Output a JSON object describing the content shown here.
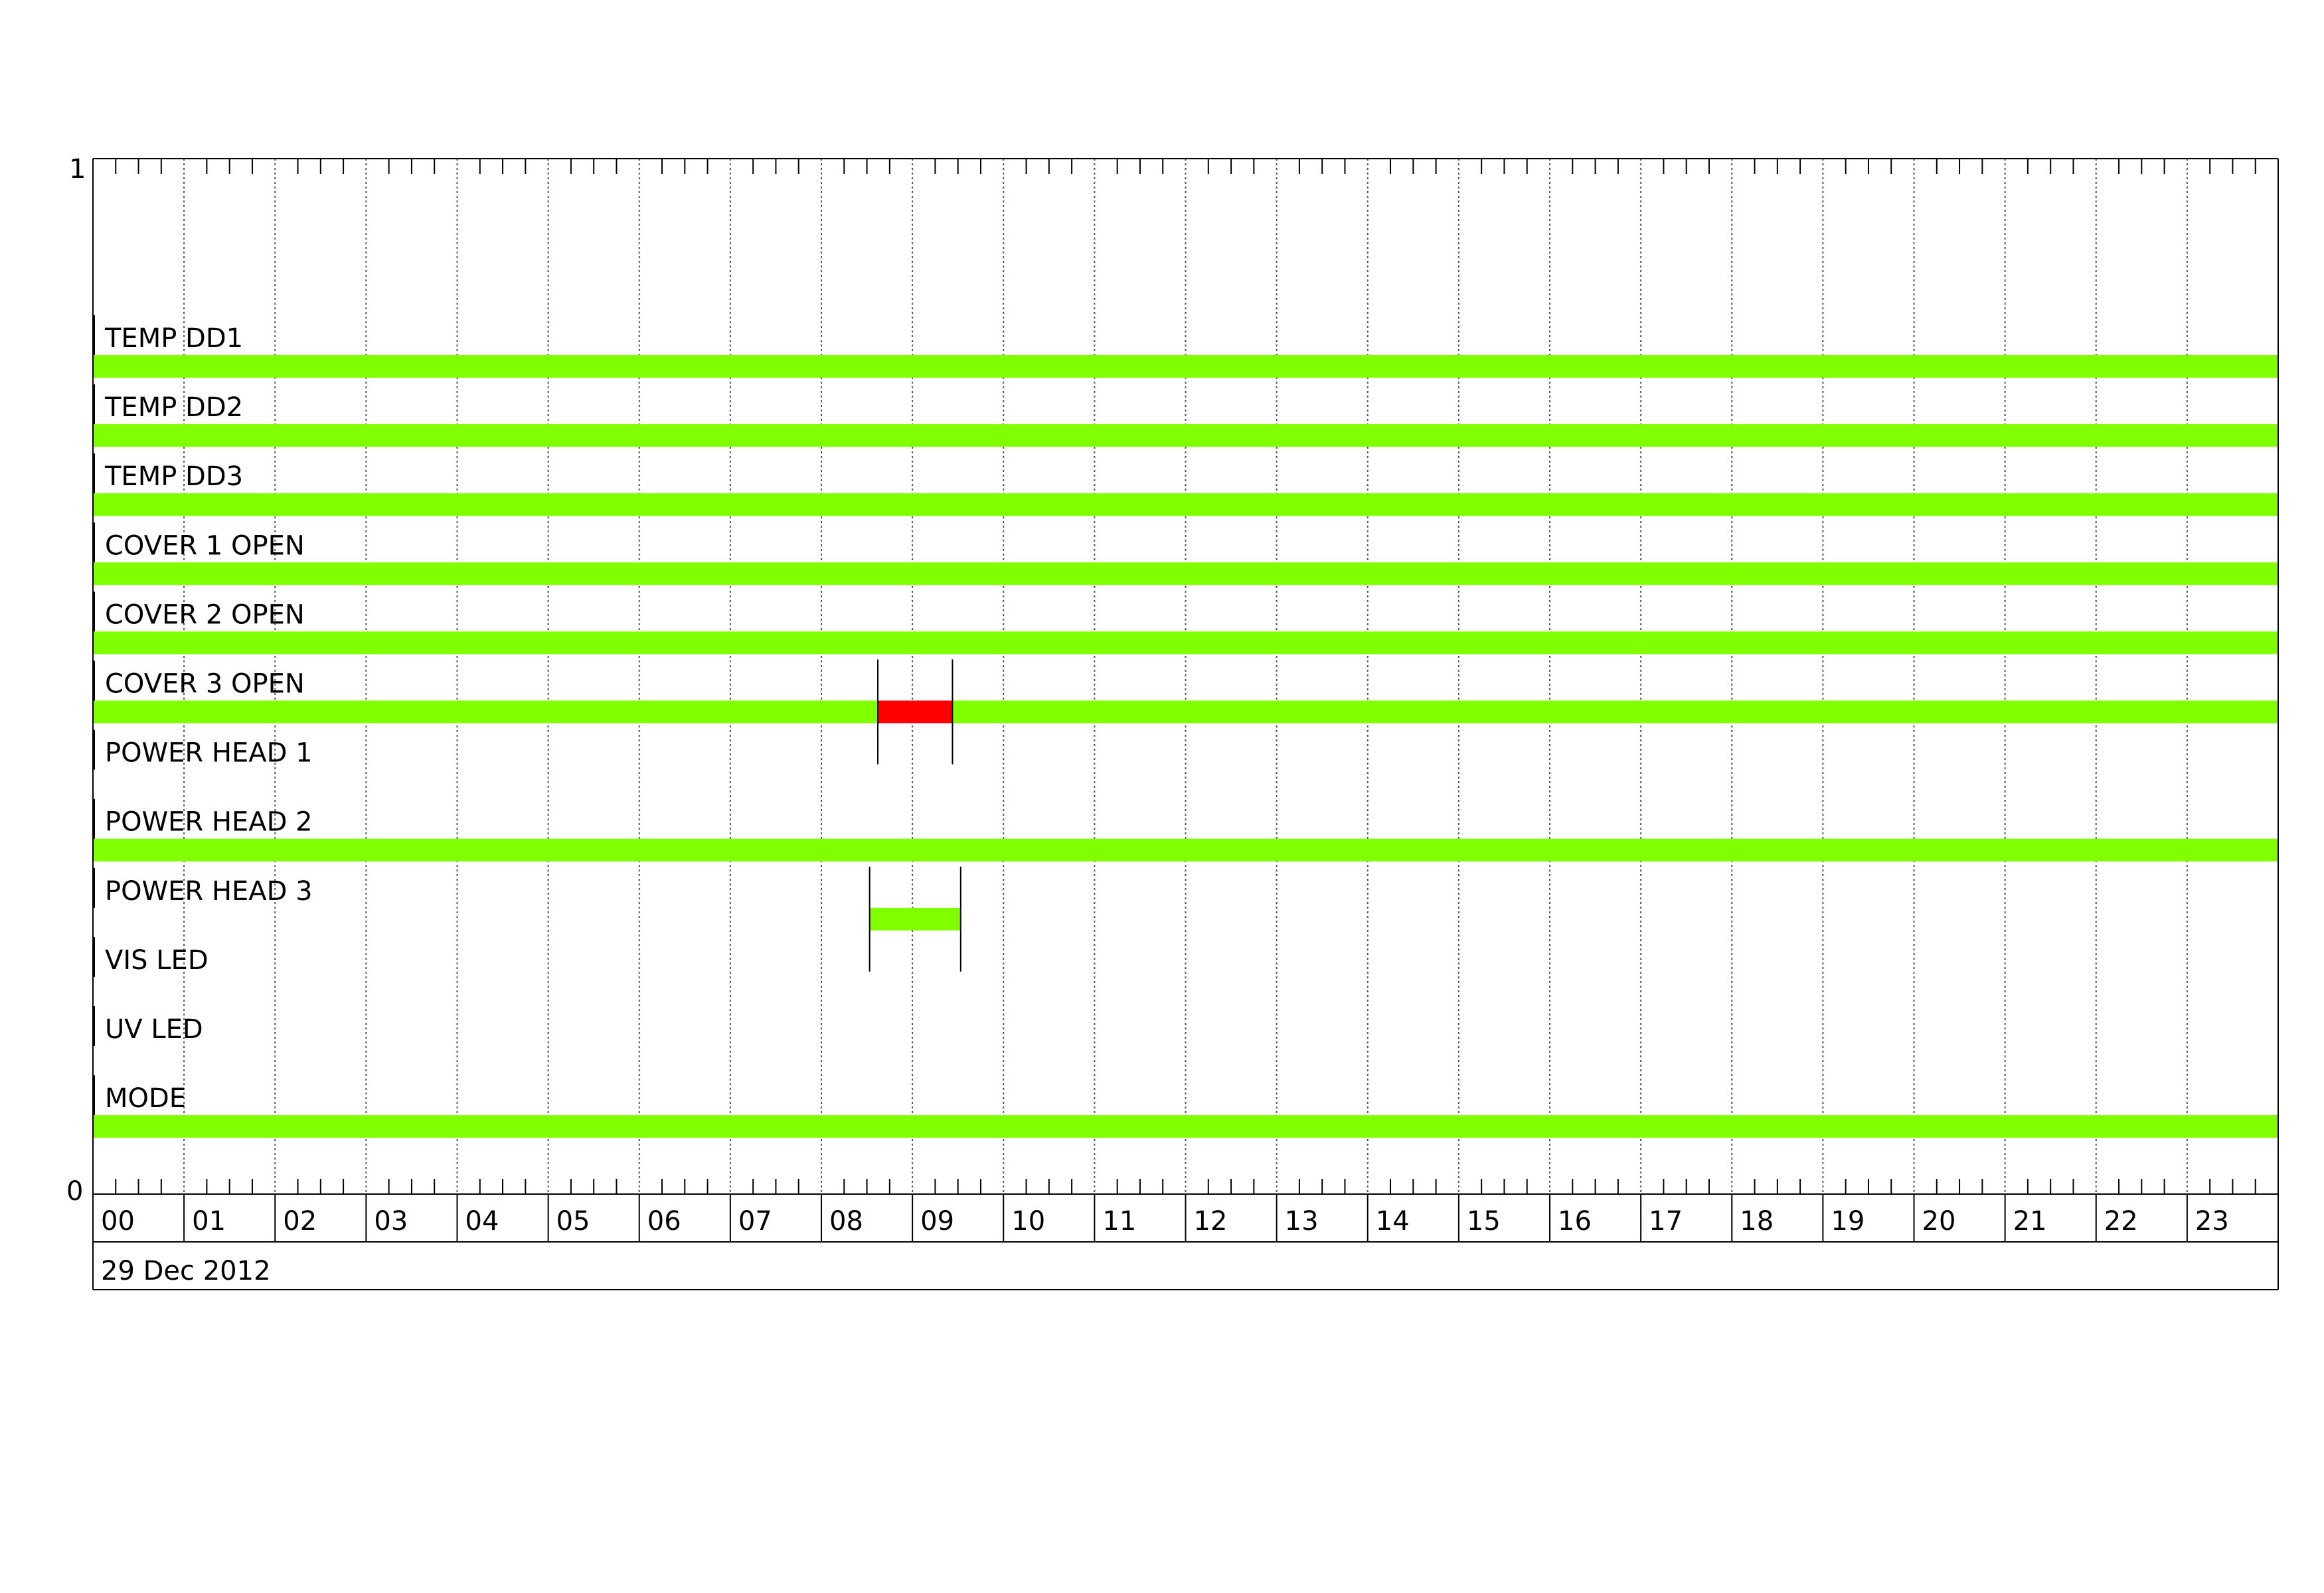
{
  "chart_data": {
    "type": "timeline",
    "date_label": "29 Dec 2012",
    "y_ticks": [
      "1",
      "0"
    ],
    "x_tick_labels": [
      "00",
      "01",
      "02",
      "03",
      "04",
      "05",
      "06",
      "07",
      "08",
      "09",
      "10",
      "11",
      "12",
      "13",
      "14",
      "15",
      "16",
      "17",
      "18",
      "19",
      "20",
      "21",
      "22",
      "23"
    ],
    "xlim_hours": [
      0,
      24
    ],
    "grid": true,
    "colors": {
      "ok": "#7fff00",
      "alarm": "#ff0000"
    },
    "rows": [
      {
        "label": "TEMP DD1",
        "segments": [
          {
            "start": 0,
            "end": 24,
            "state": "ok"
          }
        ]
      },
      {
        "label": "TEMP DD2",
        "segments": [
          {
            "start": 0,
            "end": 24,
            "state": "ok"
          }
        ]
      },
      {
        "label": "TEMP DD3",
        "segments": [
          {
            "start": 0,
            "end": 24,
            "state": "ok"
          }
        ]
      },
      {
        "label": "COVER 1 OPEN",
        "segments": [
          {
            "start": 0,
            "end": 24,
            "state": "ok"
          }
        ]
      },
      {
        "label": "COVER 2 OPEN",
        "segments": [
          {
            "start": 0,
            "end": 24,
            "state": "ok"
          }
        ]
      },
      {
        "label": "COVER 3 OPEN",
        "segments": [
          {
            "start": 0,
            "end": 8.62,
            "state": "ok"
          },
          {
            "start": 8.62,
            "end": 9.44,
            "state": "alarm"
          },
          {
            "start": 9.44,
            "end": 24,
            "state": "ok"
          }
        ],
        "markers": [
          8.62,
          9.44
        ]
      },
      {
        "label": "POWER HEAD 1",
        "segments": []
      },
      {
        "label": "POWER HEAD 2",
        "segments": [
          {
            "start": 0,
            "end": 24,
            "state": "ok"
          }
        ]
      },
      {
        "label": "POWER HEAD 3",
        "segments": [
          {
            "start": 8.53,
            "end": 9.53,
            "state": "ok"
          }
        ],
        "markers": [
          8.53,
          9.53
        ]
      },
      {
        "label": "VIS LED",
        "segments": []
      },
      {
        "label": "UV LED",
        "segments": []
      },
      {
        "label": "MODE",
        "segments": [
          {
            "start": 0,
            "end": 24,
            "state": "ok"
          }
        ]
      }
    ]
  }
}
